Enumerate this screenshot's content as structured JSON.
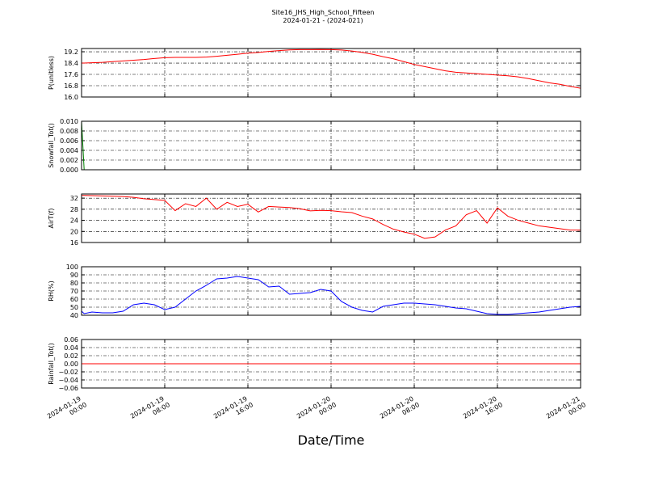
{
  "chart_data": {
    "type": "line",
    "title": "Site16_JHS_High_School_Fifteen",
    "subtitle": "2024-01-21 - (2024-021)",
    "xlabel": "Date/Time",
    "grid": true,
    "xlim": [
      "2024-01-19 00:00",
      "2024-01-21 00:00"
    ],
    "xticks": [
      "2024-01-19 00:00",
      "2024-01-19 08:00",
      "2024-01-19 16:00",
      "2024-01-20 00:00",
      "2024-01-20 08:00",
      "2024-01-20 16:00",
      "2024-01-21 00:00"
    ],
    "x": [
      "2024-01-19 00:00",
      "2024-01-19 00:15",
      "2024-01-19 01:00",
      "2024-01-19 02:00",
      "2024-01-19 03:00",
      "2024-01-19 04:00",
      "2024-01-19 05:00",
      "2024-01-19 06:00",
      "2024-01-19 07:00",
      "2024-01-19 08:00",
      "2024-01-19 09:00",
      "2024-01-19 10:00",
      "2024-01-19 11:00",
      "2024-01-19 12:00",
      "2024-01-19 13:00",
      "2024-01-19 14:00",
      "2024-01-19 15:00",
      "2024-01-19 16:00",
      "2024-01-19 17:00",
      "2024-01-19 18:00",
      "2024-01-19 19:00",
      "2024-01-19 20:00",
      "2024-01-19 21:00",
      "2024-01-19 22:00",
      "2024-01-19 23:00",
      "2024-01-20 00:00",
      "2024-01-20 01:00",
      "2024-01-20 02:00",
      "2024-01-20 03:00",
      "2024-01-20 04:00",
      "2024-01-20 05:00",
      "2024-01-20 06:00",
      "2024-01-20 07:00",
      "2024-01-20 08:00",
      "2024-01-20 09:00",
      "2024-01-20 10:00",
      "2024-01-20 11:00",
      "2024-01-20 12:00",
      "2024-01-20 13:00",
      "2024-01-20 14:00",
      "2024-01-20 15:00",
      "2024-01-20 16:00",
      "2024-01-20 17:00",
      "2024-01-20 18:00",
      "2024-01-20 19:00",
      "2024-01-20 20:00",
      "2024-01-20 21:00",
      "2024-01-20 22:00",
      "2024-01-20 23:00",
      "2024-01-21 00:00"
    ],
    "panels": [
      {
        "ylabel": "P(unitless)",
        "ylim": [
          16.0,
          19.43
        ],
        "yticks": [
          {
            "value": 16.0,
            "label": "16.0"
          },
          16.8,
          17.6,
          18.4,
          19.2
        ],
        "series": [
          {
            "color": "#ff0000",
            "values": [
              18.4,
              18.4,
              18.42,
              18.45,
              18.5,
              18.55,
              18.6,
              18.65,
              18.72,
              18.78,
              18.8,
              18.8,
              18.8,
              18.82,
              18.88,
              18.95,
              19.02,
              19.1,
              19.15,
              19.22,
              19.28,
              19.33,
              19.35,
              19.35,
              19.36,
              19.35,
              19.32,
              19.25,
              19.15,
              19.02,
              18.85,
              18.7,
              18.5,
              18.3,
              18.15,
              18.0,
              17.85,
              17.75,
              17.7,
              17.65,
              17.6,
              17.55,
              17.5,
              17.42,
              17.3,
              17.15,
              17.0,
              16.9,
              16.75,
              16.62
            ]
          }
        ]
      },
      {
        "ylabel": "Snowfall_Tot()",
        "ylim": [
          0,
          0.01
        ],
        "yticks": [
          {
            "value": 0,
            "label": "0.000"
          },
          {
            "value": 0.002,
            "label": "0.002"
          },
          {
            "value": 0.004,
            "label": "0.004"
          },
          {
            "value": 0.006,
            "label": "0.006"
          },
          {
            "value": 0.008,
            "label": "0.008"
          },
          {
            "value": 0.01,
            "label": "0.010"
          }
        ],
        "series": [
          {
            "color": "#008000",
            "values": [
              0.01,
              0,
              0,
              0,
              0,
              0,
              0,
              0,
              0,
              0,
              0,
              0,
              0,
              0,
              0,
              0,
              0,
              0,
              0,
              0,
              0,
              0,
              0,
              0,
              0,
              0,
              0,
              0,
              0,
              0,
              0,
              0,
              0,
              0,
              0,
              0,
              0,
              0,
              0,
              0,
              0,
              0,
              0,
              0,
              0,
              0,
              0,
              0,
              0,
              0
            ]
          }
        ]
      },
      {
        "ylabel": "AirT(f)",
        "ylim": [
          16,
          33.5
        ],
        "yticks": [
          16,
          20,
          24,
          28,
          32
        ],
        "series": [
          {
            "color": "#ff0000",
            "values": [
              33,
              33,
              32.9,
              32.8,
              32.7,
              32.6,
              32.3,
              31.8,
              31.5,
              31.2,
              27.5,
              30,
              29,
              32,
              28,
              30.5,
              29,
              29.8,
              27,
              29,
              28.8,
              28.6,
              28.2,
              27.4,
              27.6,
              27.5,
              27.1,
              26.8,
              25.5,
              24.5,
              22.5,
              20.8,
              19.8,
              19,
              17.5,
              18,
              20.5,
              22,
              26,
              27.5,
              23,
              28.5,
              25.5,
              24,
              23,
              22,
              21.5,
              21,
              20.5,
              20.5
            ]
          }
        ]
      },
      {
        "ylabel": "RH(%)",
        "ylim": [
          40,
          100
        ],
        "yticks": [
          40,
          50,
          60,
          70,
          80,
          90,
          100
        ],
        "series": [
          {
            "color": "#0000ff",
            "values": [
              45,
              42,
              44,
              43,
              43,
              45,
              53,
              55,
              53,
              47,
              50,
              60,
              70,
              77,
              85,
              86,
              88,
              86,
              84,
              75,
              76,
              66,
              67,
              68,
              72,
              70,
              57,
              50,
              46,
              44,
              51,
              53,
              55,
              55,
              54,
              53,
              51,
              49,
              48,
              45,
              42,
              41,
              41,
              42,
              43,
              44,
              46,
              48,
              50,
              51
            ]
          }
        ]
      },
      {
        "ylabel": "Rainfall_Tot()",
        "ylim": [
          -0.06,
          0.06
        ],
        "yticks": [
          {
            "value": -0.06,
            "label": "−0.06"
          },
          {
            "value": -0.04,
            "label": "−0.04"
          },
          {
            "value": -0.02,
            "label": "−0.02"
          },
          {
            "value": 0,
            "label": "0.00"
          },
          {
            "value": 0.02,
            "label": "0.02"
          },
          {
            "value": 0.04,
            "label": "0.04"
          },
          {
            "value": 0.06,
            "label": "0.06"
          }
        ],
        "series": [
          {
            "color": "#ff0000",
            "values": [
              0,
              0,
              0,
              0,
              0,
              0,
              0,
              0,
              0,
              0,
              0,
              0,
              0,
              0,
              0,
              0,
              0,
              0,
              0,
              0,
              0,
              0,
              0,
              0,
              0,
              0,
              0,
              0,
              0,
              0,
              0,
              0,
              0,
              0,
              0,
              0,
              0,
              0,
              0,
              0,
              0,
              0,
              0,
              0,
              0,
              0,
              0,
              0,
              0,
              0
            ]
          }
        ]
      }
    ]
  }
}
